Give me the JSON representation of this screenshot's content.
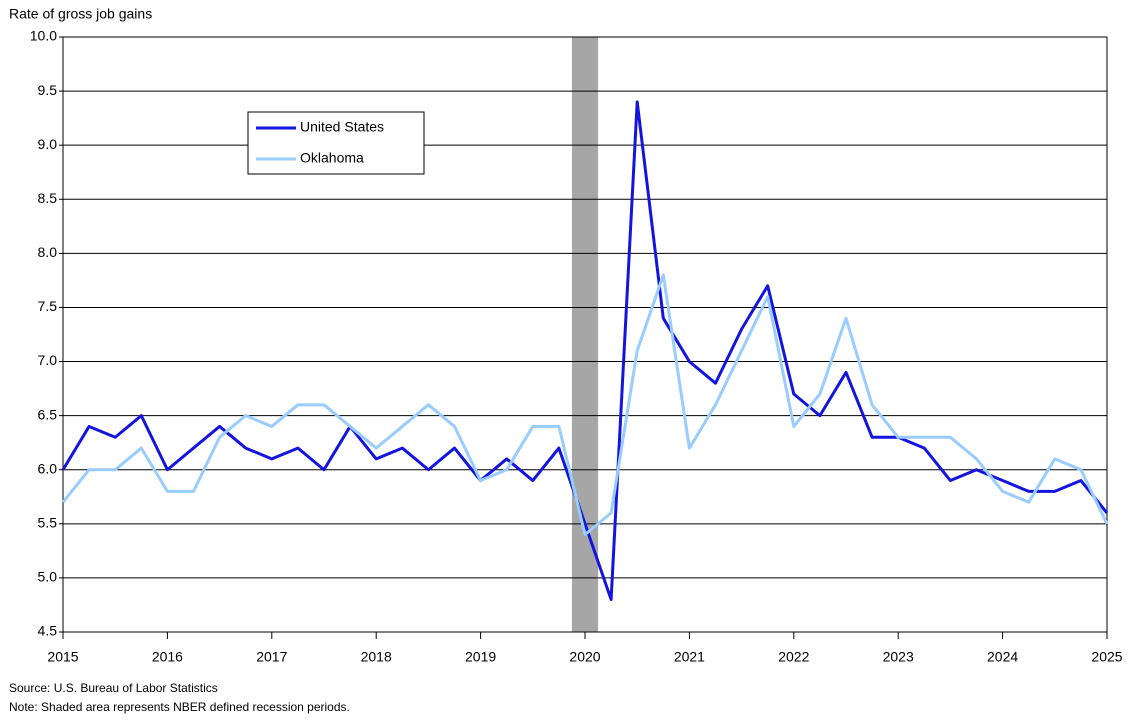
{
  "chart_data": {
    "type": "line",
    "title": "Rate of gross job gains",
    "x": [
      2015,
      2015.25,
      2015.5,
      2015.75,
      2016,
      2016.25,
      2016.5,
      2016.75,
      2017,
      2017.25,
      2017.5,
      2017.75,
      2018,
      2018.25,
      2018.5,
      2018.75,
      2019,
      2019.25,
      2019.5,
      2019.75,
      2020,
      2020.25,
      2020.5,
      2020.75,
      2021,
      2021.25,
      2021.5,
      2021.75,
      2022,
      2022.25,
      2022.5,
      2022.75,
      2023,
      2023.25,
      2023.5,
      2023.75,
      2024,
      2024.25,
      2024.5,
      2024.75,
      2025
    ],
    "series": [
      {
        "name": "United States",
        "color": "#1414e0",
        "values": [
          6.0,
          6.4,
          6.3,
          6.5,
          6.0,
          6.2,
          6.4,
          6.2,
          6.1,
          6.2,
          6.0,
          6.4,
          6.1,
          6.2,
          6.0,
          6.2,
          5.9,
          6.1,
          5.9,
          6.2,
          5.5,
          4.8,
          9.4,
          7.4,
          7.0,
          6.8,
          7.3,
          7.7,
          6.7,
          6.5,
          6.9,
          6.3,
          6.3,
          6.2,
          5.9,
          6.0,
          5.9,
          5.8,
          5.8,
          5.9,
          5.6
        ]
      },
      {
        "name": "Oklahoma",
        "color": "#99ccff",
        "values": [
          5.7,
          6.0,
          6.0,
          6.2,
          5.8,
          5.8,
          6.3,
          6.5,
          6.4,
          6.6,
          6.6,
          6.4,
          6.2,
          6.4,
          6.6,
          6.4,
          5.9,
          6.0,
          6.4,
          6.4,
          5.4,
          5.6,
          7.1,
          7.8,
          6.2,
          6.6,
          7.1,
          7.6,
          6.4,
          6.7,
          7.4,
          6.6,
          6.3,
          6.3,
          6.3,
          6.1,
          5.8,
          5.7,
          6.1,
          6.0,
          5.5
        ]
      }
    ],
    "recessions": [
      [
        2019.875,
        2020.125
      ]
    ],
    "xlim": [
      2015,
      2025
    ],
    "xticks": [
      2015,
      2016,
      2017,
      2018,
      2019,
      2020,
      2021,
      2022,
      2023,
      2024,
      2025
    ],
    "ylim": [
      4.5,
      10
    ],
    "yticks": [
      {
        "value": 4.5,
        "label": "4.5"
      },
      {
        "value": 5,
        "label": "5.0"
      },
      5.5,
      {
        "value": 6,
        "label": "6.0"
      },
      6.5,
      {
        "value": 7,
        "label": "7.0"
      },
      7.5,
      {
        "value": 8,
        "label": "8.0"
      },
      8.5,
      {
        "value": 9,
        "label": "9.0"
      },
      9.5,
      {
        "value": 10,
        "label": "10.0"
      }
    ],
    "grid": true,
    "source": "Source: U.S. Bureau of Labor Statistics",
    "note": "Note: Shaded area represents NBER defined recession periods."
  }
}
